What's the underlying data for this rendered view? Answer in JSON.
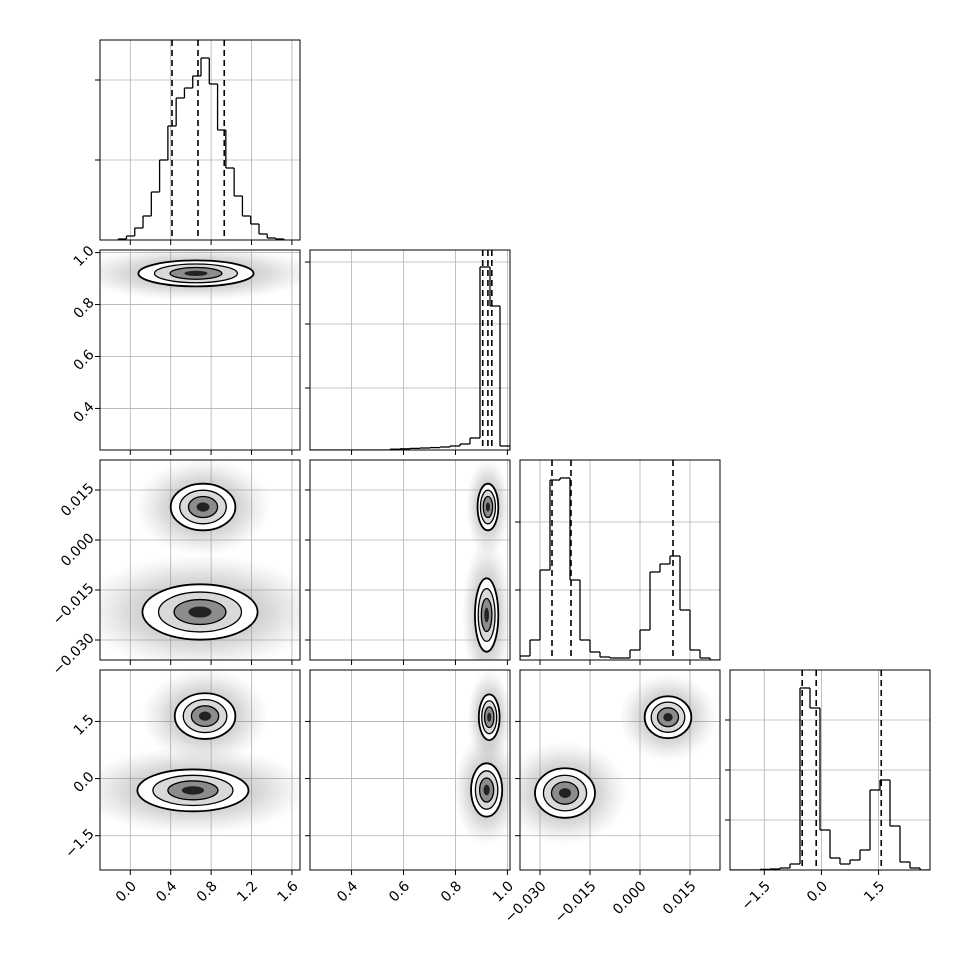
{
  "chart_data": {
    "type": "corner",
    "grid": true,
    "parameters": [
      {
        "lim": [
          -0.3,
          1.68
        ],
        "ticks": [
          {
            "value": 0,
            "label": "0.0"
          },
          0.4,
          0.8,
          1.2,
          1.6
        ]
      },
      {
        "lim": [
          0.24,
          1.01
        ],
        "ticks": [
          0.4,
          0.6,
          0.8,
          {
            "value": 1,
            "label": "1.0"
          }
        ]
      },
      {
        "lim": [
          -0.036,
          0.024
        ],
        "ticks": [
          {
            "value": -0.03,
            "label": "−0.030"
          },
          {
            "value": -0.015,
            "label": "−0.015"
          },
          {
            "value": 0,
            "label": "0.000"
          },
          0.015
        ]
      },
      {
        "lim": [
          -2.4,
          2.85
        ],
        "ticks": [
          {
            "value": -1.5,
            "label": "−1.5"
          },
          {
            "value": 0,
            "label": "0.0"
          },
          1.5
        ]
      }
    ],
    "histograms": [
      {
        "bins": [
          -0.12,
          -0.038,
          0.044,
          0.126,
          0.208,
          0.29,
          0.372,
          0.454,
          0.536,
          0.618,
          0.7,
          0.782,
          0.864,
          0.946,
          1.028,
          1.11,
          1.192,
          1.274,
          1.356,
          1.438,
          1.52
        ],
        "counts": [
          0.005,
          0.02,
          0.06,
          0.12,
          0.24,
          0.4,
          0.57,
          0.71,
          0.76,
          0.82,
          0.91,
          0.78,
          0.55,
          0.36,
          0.22,
          0.12,
          0.08,
          0.03,
          0.01,
          0.005
        ],
        "quantiles": [
          0.413,
          0.67,
          0.93
        ],
        "ylim": [
          0,
          1
        ],
        "yticks": [
          0.4,
          0.8
        ]
      },
      {
        "bins": [
          0.24,
          0.2785,
          0.317,
          0.3555,
          0.394,
          0.4325,
          0.471,
          0.5095,
          0.548,
          0.5865,
          0.625,
          0.6635,
          0.702,
          0.7405,
          0.779,
          0.8175,
          0.856,
          0.8945,
          0.933,
          0.9715,
          1.01
        ],
        "counts": [
          0,
          0,
          0,
          0,
          0,
          0,
          0,
          0,
          0.004,
          0.006,
          0.008,
          0.01,
          0.012,
          0.015,
          0.02,
          0.03,
          0.06,
          0.915,
          0.72,
          0.02
        ],
        "quantiles": [
          0.905,
          0.925,
          0.94
        ],
        "ylim": [
          0,
          1
        ],
        "yticks": [
          0.31,
          0.63,
          0.94
        ]
      },
      {
        "bins": [
          -0.036,
          -0.033,
          -0.03,
          -0.027,
          -0.024,
          -0.021,
          -0.018,
          -0.015,
          -0.012,
          -0.009,
          -0.006,
          -0.003,
          0,
          0.003,
          0.006,
          0.009,
          0.012,
          0.015,
          0.018,
          0.021,
          0.024
        ],
        "counts": [
          0.02,
          0.1,
          0.45,
          0.9,
          0.91,
          0.4,
          0.1,
          0.04,
          0.015,
          0.01,
          0.01,
          0.05,
          0.15,
          0.44,
          0.48,
          0.52,
          0.25,
          0.05,
          0.01,
          0
        ],
        "quantiles": [
          -0.0264,
          -0.0207,
          0.0099
        ],
        "ylim": [
          0,
          1
        ],
        "yticks": [
          0.35,
          0.69
        ]
      },
      {
        "bins": [
          -2.4,
          -2.1375,
          -1.875,
          -1.6125,
          -1.35,
          -1.0875,
          -0.825,
          -0.5625,
          -0.3,
          -0.0375,
          0.225,
          0.4875,
          0.75,
          1.0125,
          1.275,
          1.5375,
          1.8,
          2.0625,
          2.325,
          2.5875,
          2.85
        ],
        "counts": [
          0,
          0,
          0,
          0.003,
          0.005,
          0.01,
          0.03,
          0.91,
          0.81,
          0.2,
          0.06,
          0.03,
          0.05,
          0.1,
          0.4,
          0.45,
          0.22,
          0.04,
          0.01,
          0
        ],
        "quantiles": [
          -0.505,
          -0.137,
          1.57
        ],
        "ylim": [
          0,
          1
        ],
        "yticks": [
          0.25,
          0.5,
          0.75
        ]
      }
    ],
    "panels": [
      {
        "clusters": [
          {
            "center": [
              0.65,
              0.92
            ],
            "radius": [
              0.57,
              0.05
            ]
          }
        ]
      },
      {
        "clusters": [
          {
            "center": [
              0.72,
              0.0099
            ],
            "radius": [
              0.32,
              0.007
            ]
          },
          {
            "center": [
              0.69,
              -0.0216
            ],
            "radius": [
              0.57,
              0.0083
            ]
          }
        ]
      },
      {
        "clusters": [
          {
            "center": [
              0.925,
              0.0099
            ],
            "radius": [
              0.04,
              0.007
            ]
          },
          {
            "center": [
              0.92,
              -0.0225
            ],
            "radius": [
              0.045,
              0.011
            ]
          }
        ]
      },
      {
        "clusters": [
          {
            "center": [
              0.74,
              1.64
            ],
            "radius": [
              0.3,
              0.6
            ]
          },
          {
            "center": [
              0.62,
              -0.31
            ],
            "radius": [
              0.55,
              0.55
            ]
          }
        ]
      },
      {
        "clusters": [
          {
            "center": [
              0.93,
              1.61
            ],
            "radius": [
              0.04,
              0.6
            ]
          },
          {
            "center": [
              0.92,
              -0.3
            ],
            "radius": [
              0.06,
              0.7
            ]
          }
        ]
      },
      {
        "clusters": [
          {
            "center": [
              0.0084,
              1.61
            ],
            "radius": [
              0.007,
              0.55
            ]
          },
          {
            "center": [
              -0.0225,
              -0.38
            ],
            "radius": [
              0.009,
              0.65
            ]
          }
        ]
      }
    ]
  }
}
